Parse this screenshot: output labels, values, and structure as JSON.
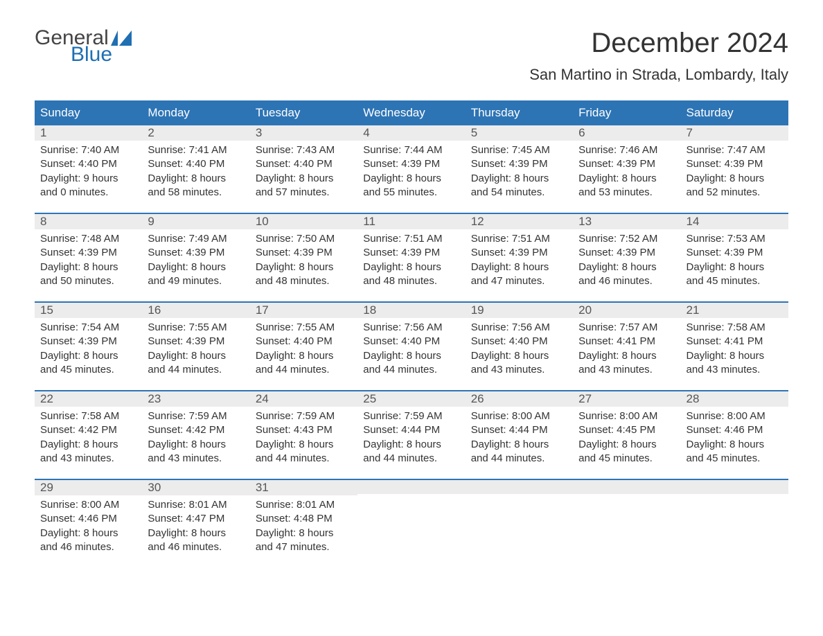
{
  "logo": {
    "text1": "General",
    "text2": "Blue",
    "color1": "#444444",
    "color2": "#1f6fb2"
  },
  "title": "December 2024",
  "location": "San Martino in Strada, Lombardy, Italy",
  "colors": {
    "header_bg": "#2d74b5",
    "header_text": "#ffffff",
    "row_border": "#2d74b5",
    "daynum_bg": "#ececec",
    "body_text": "#333333"
  },
  "weekdays": [
    "Sunday",
    "Monday",
    "Tuesday",
    "Wednesday",
    "Thursday",
    "Friday",
    "Saturday"
  ],
  "labels": {
    "sunrise": "Sunrise:",
    "sunset": "Sunset:",
    "daylight": "Daylight:"
  },
  "days": [
    {
      "n": "1",
      "sunrise": "7:40 AM",
      "sunset": "4:40 PM",
      "daylight1": "9 hours",
      "daylight2": "and 0 minutes."
    },
    {
      "n": "2",
      "sunrise": "7:41 AM",
      "sunset": "4:40 PM",
      "daylight1": "8 hours",
      "daylight2": "and 58 minutes."
    },
    {
      "n": "3",
      "sunrise": "7:43 AM",
      "sunset": "4:40 PM",
      "daylight1": "8 hours",
      "daylight2": "and 57 minutes."
    },
    {
      "n": "4",
      "sunrise": "7:44 AM",
      "sunset": "4:39 PM",
      "daylight1": "8 hours",
      "daylight2": "and 55 minutes."
    },
    {
      "n": "5",
      "sunrise": "7:45 AM",
      "sunset": "4:39 PM",
      "daylight1": "8 hours",
      "daylight2": "and 54 minutes."
    },
    {
      "n": "6",
      "sunrise": "7:46 AM",
      "sunset": "4:39 PM",
      "daylight1": "8 hours",
      "daylight2": "and 53 minutes."
    },
    {
      "n": "7",
      "sunrise": "7:47 AM",
      "sunset": "4:39 PM",
      "daylight1": "8 hours",
      "daylight2": "and 52 minutes."
    },
    {
      "n": "8",
      "sunrise": "7:48 AM",
      "sunset": "4:39 PM",
      "daylight1": "8 hours",
      "daylight2": "and 50 minutes."
    },
    {
      "n": "9",
      "sunrise": "7:49 AM",
      "sunset": "4:39 PM",
      "daylight1": "8 hours",
      "daylight2": "and 49 minutes."
    },
    {
      "n": "10",
      "sunrise": "7:50 AM",
      "sunset": "4:39 PM",
      "daylight1": "8 hours",
      "daylight2": "and 48 minutes."
    },
    {
      "n": "11",
      "sunrise": "7:51 AM",
      "sunset": "4:39 PM",
      "daylight1": "8 hours",
      "daylight2": "and 48 minutes."
    },
    {
      "n": "12",
      "sunrise": "7:51 AM",
      "sunset": "4:39 PM",
      "daylight1": "8 hours",
      "daylight2": "and 47 minutes."
    },
    {
      "n": "13",
      "sunrise": "7:52 AM",
      "sunset": "4:39 PM",
      "daylight1": "8 hours",
      "daylight2": "and 46 minutes."
    },
    {
      "n": "14",
      "sunrise": "7:53 AM",
      "sunset": "4:39 PM",
      "daylight1": "8 hours",
      "daylight2": "and 45 minutes."
    },
    {
      "n": "15",
      "sunrise": "7:54 AM",
      "sunset": "4:39 PM",
      "daylight1": "8 hours",
      "daylight2": "and 45 minutes."
    },
    {
      "n": "16",
      "sunrise": "7:55 AM",
      "sunset": "4:39 PM",
      "daylight1": "8 hours",
      "daylight2": "and 44 minutes."
    },
    {
      "n": "17",
      "sunrise": "7:55 AM",
      "sunset": "4:40 PM",
      "daylight1": "8 hours",
      "daylight2": "and 44 minutes."
    },
    {
      "n": "18",
      "sunrise": "7:56 AM",
      "sunset": "4:40 PM",
      "daylight1": "8 hours",
      "daylight2": "and 44 minutes."
    },
    {
      "n": "19",
      "sunrise": "7:56 AM",
      "sunset": "4:40 PM",
      "daylight1": "8 hours",
      "daylight2": "and 43 minutes."
    },
    {
      "n": "20",
      "sunrise": "7:57 AM",
      "sunset": "4:41 PM",
      "daylight1": "8 hours",
      "daylight2": "and 43 minutes."
    },
    {
      "n": "21",
      "sunrise": "7:58 AM",
      "sunset": "4:41 PM",
      "daylight1": "8 hours",
      "daylight2": "and 43 minutes."
    },
    {
      "n": "22",
      "sunrise": "7:58 AM",
      "sunset": "4:42 PM",
      "daylight1": "8 hours",
      "daylight2": "and 43 minutes."
    },
    {
      "n": "23",
      "sunrise": "7:59 AM",
      "sunset": "4:42 PM",
      "daylight1": "8 hours",
      "daylight2": "and 43 minutes."
    },
    {
      "n": "24",
      "sunrise": "7:59 AM",
      "sunset": "4:43 PM",
      "daylight1": "8 hours",
      "daylight2": "and 44 minutes."
    },
    {
      "n": "25",
      "sunrise": "7:59 AM",
      "sunset": "4:44 PM",
      "daylight1": "8 hours",
      "daylight2": "and 44 minutes."
    },
    {
      "n": "26",
      "sunrise": "8:00 AM",
      "sunset": "4:44 PM",
      "daylight1": "8 hours",
      "daylight2": "and 44 minutes."
    },
    {
      "n": "27",
      "sunrise": "8:00 AM",
      "sunset": "4:45 PM",
      "daylight1": "8 hours",
      "daylight2": "and 45 minutes."
    },
    {
      "n": "28",
      "sunrise": "8:00 AM",
      "sunset": "4:46 PM",
      "daylight1": "8 hours",
      "daylight2": "and 45 minutes."
    },
    {
      "n": "29",
      "sunrise": "8:00 AM",
      "sunset": "4:46 PM",
      "daylight1": "8 hours",
      "daylight2": "and 46 minutes."
    },
    {
      "n": "30",
      "sunrise": "8:01 AM",
      "sunset": "4:47 PM",
      "daylight1": "8 hours",
      "daylight2": "and 46 minutes."
    },
    {
      "n": "31",
      "sunrise": "8:01 AM",
      "sunset": "4:48 PM",
      "daylight1": "8 hours",
      "daylight2": "and 47 minutes."
    }
  ]
}
